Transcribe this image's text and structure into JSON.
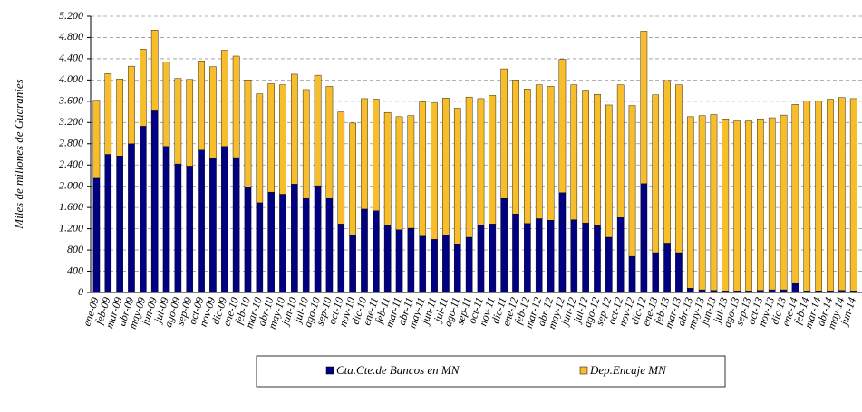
{
  "chart_data": {
    "type": "stacked_bar",
    "y_label": "Miles de millones de Guaraníes",
    "categories": [
      "ene-09",
      "feb-09",
      "mar-09",
      "abr-09",
      "may-09",
      "jun-09",
      "jul-09",
      "ago-09",
      "sep-09",
      "oct-09",
      "nov-09",
      "dic-09",
      "ene-10",
      "feb-10",
      "mar-10",
      "abr-10",
      "may-10",
      "jun-10",
      "jul-10",
      "ago-10",
      "sep-10",
      "oct-10",
      "nov-10",
      "dic-10",
      "ene-11",
      "feb-11",
      "mar-11",
      "abr-11",
      "may-11",
      "jun-11",
      "jul-11",
      "ago-11",
      "sep-11",
      "oct-11",
      "nov-11",
      "dic-11",
      "ene-12",
      "feb-12",
      "mar-12",
      "abr-12",
      "may-12",
      "jun-12",
      "jul-12",
      "ago-12",
      "sep-12",
      "oct-12",
      "nov-12",
      "dic-12",
      "ene-13",
      "feb-13",
      "mar-13",
      "abr-13",
      "may-13",
      "jun-13",
      "jul-13",
      "ago-13",
      "sep-13",
      "oct-13",
      "nov-13",
      "dic-13",
      "ene-14",
      "feb-14",
      "mar-14",
      "abr-14",
      "may-14",
      "jun-14"
    ],
    "series": [
      {
        "name": "Cta.Cte.de Bancos en MN",
        "color": "#000080",
        "values": [
          2150,
          2600,
          2570,
          2800,
          3130,
          3420,
          2750,
          2420,
          2380,
          2680,
          2520,
          2750,
          2540,
          1990,
          1690,
          1890,
          1850,
          2040,
          1770,
          2010,
          1770,
          1290,
          1070,
          1570,
          1540,
          1260,
          1180,
          1210,
          1060,
          1000,
          1080,
          900,
          1040,
          1270,
          1290,
          1770,
          1480,
          1300,
          1390,
          1360,
          1880,
          1370,
          1310,
          1260,
          1040,
          1410,
          680,
          2050,
          750,
          930,
          750,
          80,
          50,
          40,
          30,
          30,
          30,
          40,
          50,
          50,
          170,
          30,
          30,
          30,
          40,
          30
        ]
      },
      {
        "name": "Dep.Encaje MN",
        "color": "#f7bd2b",
        "values": [
          1470,
          1520,
          1450,
          1460,
          1450,
          1520,
          1590,
          1610,
          1630,
          1680,
          1730,
          1810,
          1910,
          2010,
          2050,
          2040,
          2060,
          2070,
          2050,
          2080,
          2110,
          2110,
          2120,
          2080,
          2100,
          2130,
          2130,
          2120,
          2530,
          2570,
          2580,
          2570,
          2640,
          2380,
          2420,
          2440,
          2520,
          2530,
          2520,
          2520,
          2510,
          2540,
          2500,
          2470,
          2490,
          2500,
          2840,
          2870,
          2970,
          3060,
          3160,
          3230,
          3280,
          3310,
          3240,
          3200,
          3200,
          3230,
          3240,
          3290,
          3370,
          3580,
          3570,
          3610,
          3630,
          3620
        ]
      }
    ],
    "ylim": [
      0,
      5200
    ],
    "yticks": [
      0,
      400,
      800,
      {
        "value": 1200,
        "label": "1.200"
      },
      {
        "value": 1600,
        "label": "1.600"
      },
      {
        "value": 2000,
        "label": "2.000"
      },
      {
        "value": 2400,
        "label": "2.400"
      },
      {
        "value": 2800,
        "label": "2.800"
      },
      {
        "value": 3200,
        "label": "3.200"
      },
      {
        "value": 3600,
        "label": "3.600"
      },
      {
        "value": 4000,
        "label": "4.000"
      },
      {
        "value": 4400,
        "label": "4.400"
      },
      {
        "value": 4800,
        "label": "4.800"
      },
      {
        "value": 5200,
        "label": "5.200"
      }
    ],
    "grid": true,
    "legend": "bottom"
  }
}
